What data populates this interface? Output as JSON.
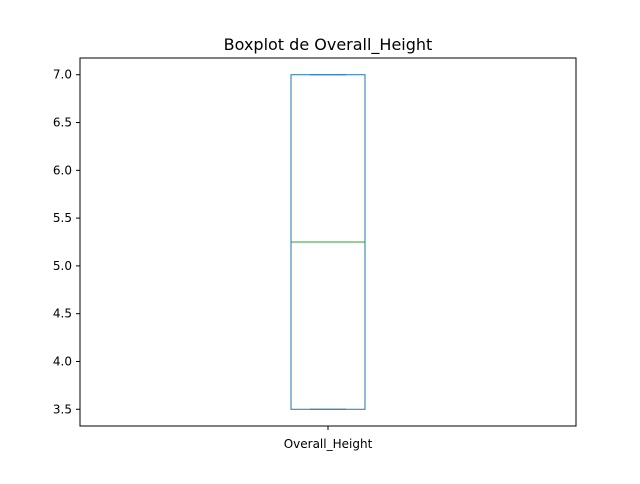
{
  "chart_data": {
    "type": "box",
    "title": "Boxplot de Overall_Height",
    "categories": [
      "Overall_Height"
    ],
    "series": [
      {
        "values": {
          "whisker_low": 3.5,
          "q1": 3.5,
          "median": 5.25,
          "q3": 7.0,
          "whisker_high": 7.0
        }
      }
    ],
    "yticks": [
      "3.5",
      "4.0",
      "4.5",
      "5.0",
      "5.5",
      "6.0",
      "6.5",
      "7.0"
    ],
    "ylim": [
      3.325,
      7.175
    ],
    "grid": false,
    "colors": {
      "box": "#1f77b4",
      "median": "#2ca02c",
      "axes": "#000000"
    }
  }
}
